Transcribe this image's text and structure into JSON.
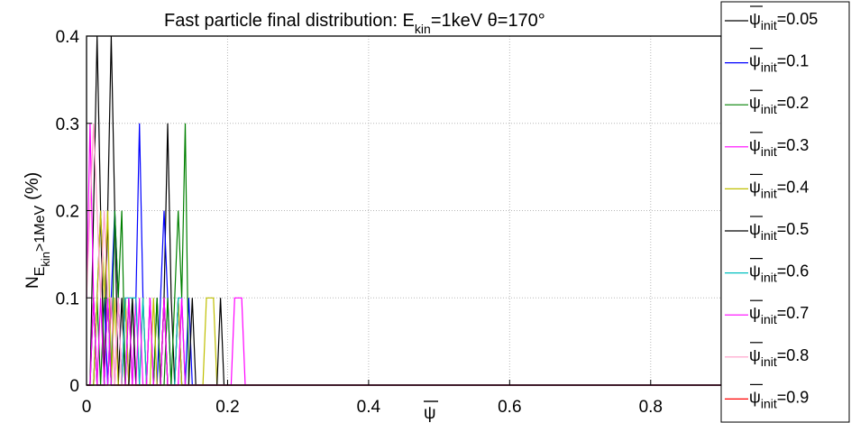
{
  "chart_data": {
    "type": "line",
    "title": {
      "main": "Fast particle final distribution: E",
      "sub": "kin",
      "rest": "=1keV θ=170°"
    },
    "xlabel": "ψ",
    "ylabel": {
      "main": "N",
      "sub": "E",
      "subsub": "kin",
      "rest": ">1MeV",
      "unit": "(%)"
    },
    "xlim": [
      0,
      0.9
    ],
    "ylim": [
      0,
      0.4
    ],
    "xticks": [
      "0",
      "0.2",
      "0.4",
      "0.6",
      "0.8"
    ],
    "yticks": [
      "0",
      "0.1",
      "0.2",
      "0.3",
      "0.4"
    ],
    "grid": true,
    "legend_position": "right-outside",
    "legend_sub": "init",
    "series": [
      {
        "name": "0.05",
        "color": "#000000",
        "x": [
          0,
          0.005,
          0.01,
          0.015,
          0.02,
          0.025,
          0.03,
          0.035,
          0.04,
          0.045,
          0.05,
          0.055,
          0.06,
          0.065,
          0.07,
          0.075,
          0.08,
          0.085,
          0.09,
          0.095,
          0.1,
          0.105,
          0.11,
          0.115,
          0.12,
          0.125,
          0.13,
          0.135,
          0.14,
          0.145,
          0.15,
          0.155,
          0.16,
          0.9
        ],
        "y": [
          0,
          0,
          0.2,
          0.4,
          0.2,
          0,
          0.2,
          0.4,
          0.2,
          0,
          0.1,
          0,
          0.1,
          0,
          0,
          0,
          0,
          0,
          0,
          0,
          0.1,
          0,
          0.1,
          0.3,
          0.1,
          0,
          0.1,
          0,
          0,
          0,
          0,
          0,
          0,
          0
        ]
      },
      {
        "name": "0.1",
        "color": "#0000ff",
        "x": [
          0,
          0.01,
          0.015,
          0.02,
          0.025,
          0.03,
          0.035,
          0.04,
          0.045,
          0.05,
          0.055,
          0.06,
          0.065,
          0.07,
          0.075,
          0.08,
          0.085,
          0.09,
          0.095,
          0.1,
          0.105,
          0.11,
          0.115,
          0.12,
          0.125,
          0.13,
          0.135,
          0.14,
          0.145,
          0.15,
          0.9
        ],
        "y": [
          0,
          0,
          0.1,
          0.2,
          0.1,
          0,
          0.1,
          0.2,
          0.1,
          0,
          0.1,
          0,
          0,
          0.1,
          0.3,
          0.1,
          0,
          0,
          0,
          0,
          0.1,
          0.2,
          0.1,
          0,
          0,
          0.1,
          0,
          0,
          0.1,
          0,
          0
        ]
      },
      {
        "name": "0.2",
        "color": "#008000",
        "x": [
          0,
          0.01,
          0.015,
          0.02,
          0.025,
          0.03,
          0.035,
          0.04,
          0.045,
          0.05,
          0.055,
          0.06,
          0.065,
          0.07,
          0.075,
          0.08,
          0.085,
          0.09,
          0.095,
          0.1,
          0.105,
          0.11,
          0.115,
          0.12,
          0.125,
          0.13,
          0.135,
          0.14,
          0.145,
          0.15,
          0.9
        ],
        "y": [
          0,
          0,
          0.1,
          0,
          0.1,
          0.1,
          0,
          0.2,
          0.1,
          0.2,
          0,
          0,
          0.1,
          0,
          0,
          0,
          0,
          0.1,
          0,
          0.1,
          0,
          0,
          0.1,
          0,
          0.1,
          0.2,
          0.1,
          0.3,
          0,
          0,
          0
        ]
      },
      {
        "name": "0.3",
        "color": "#ff00ff",
        "x": [
          0,
          0.005,
          0.01,
          0.015,
          0.02,
          0.025,
          0.03,
          0.035,
          0.04,
          0.045,
          0.05,
          0.055,
          0.06,
          0.065,
          0.07,
          0.075,
          0.08,
          0.085,
          0.09,
          0.095,
          0.1,
          0.105,
          0.11,
          0.115,
          0.12,
          0.125,
          0.13,
          0.135,
          0.14,
          0.145,
          0.15,
          0.155,
          0.16,
          0.165,
          0.17,
          0.175,
          0.18,
          0.185,
          0.19,
          0.195,
          0.2,
          0.205,
          0.21,
          0.215,
          0.22,
          0.225,
          0.9
        ],
        "y": [
          0.1,
          0.3,
          0.1,
          0,
          0.1,
          0,
          0,
          0.1,
          0,
          0,
          0,
          0.1,
          0,
          0,
          0.1,
          0,
          0,
          0,
          0.1,
          0,
          0,
          0,
          0.1,
          0,
          0,
          0,
          0,
          0.1,
          0,
          0,
          0,
          0,
          0,
          0,
          0,
          0,
          0,
          0,
          0,
          0,
          0,
          0,
          0.1,
          0.1,
          0.1,
          0,
          0
        ]
      },
      {
        "name": "0.4",
        "color": "#bfbf00",
        "x": [
          0,
          0.01,
          0.015,
          0.02,
          0.025,
          0.03,
          0.035,
          0.04,
          0.045,
          0.05,
          0.055,
          0.06,
          0.065,
          0.07,
          0.075,
          0.08,
          0.085,
          0.09,
          0.095,
          0.1,
          0.105,
          0.11,
          0.115,
          0.12,
          0.125,
          0.13,
          0.135,
          0.14,
          0.145,
          0.15,
          0.155,
          0.16,
          0.165,
          0.17,
          0.175,
          0.18,
          0.185,
          0.19,
          0.195,
          0.9
        ],
        "y": [
          0,
          0,
          0.1,
          0.2,
          0.1,
          0.2,
          0,
          0.1,
          0,
          0,
          0.1,
          0,
          0,
          0,
          0,
          0.1,
          0,
          0,
          0.1,
          0,
          0,
          0.1,
          0,
          0,
          0,
          0.1,
          0,
          0,
          0,
          0,
          0,
          0,
          0,
          0.1,
          0.1,
          0.1,
          0,
          0,
          0,
          0
        ]
      },
      {
        "name": "0.5",
        "color": "#000000",
        "x": [
          0,
          0.005,
          0.01,
          0.015,
          0.02,
          0.025,
          0.03,
          0.035,
          0.04,
          0.045,
          0.05,
          0.055,
          0.06,
          0.065,
          0.07,
          0.075,
          0.08,
          0.085,
          0.09,
          0.095,
          0.1,
          0.105,
          0.11,
          0.115,
          0.12,
          0.125,
          0.13,
          0.135,
          0.14,
          0.145,
          0.15,
          0.155,
          0.16,
          0.165,
          0.17,
          0.175,
          0.18,
          0.185,
          0.19,
          0.195,
          0.2,
          0.9
        ],
        "y": [
          0,
          0,
          0.1,
          0,
          0,
          0,
          0.1,
          0,
          0,
          0,
          0,
          0,
          0,
          0.1,
          0,
          0,
          0,
          0,
          0,
          0,
          0,
          0,
          0.1,
          0,
          0,
          0,
          0,
          0,
          0,
          0,
          0.1,
          0,
          0,
          0,
          0,
          0,
          0,
          0,
          0.1,
          0,
          0,
          0
        ]
      },
      {
        "name": "0.6",
        "color": "#00bfbf",
        "x": [
          0,
          0.025,
          0.03,
          0.035,
          0.04,
          0.045,
          0.05,
          0.055,
          0.06,
          0.065,
          0.07,
          0.075,
          0.08,
          0.085,
          0.09,
          0.095,
          0.1,
          0.105,
          0.11,
          0.115,
          0.12,
          0.125,
          0.13,
          0.135,
          0.14,
          0.145,
          0.15,
          0.9
        ],
        "y": [
          0,
          0,
          0.1,
          0,
          0,
          0.1,
          0,
          0.1,
          0.1,
          0.1,
          0.1,
          0,
          0.1,
          0,
          0,
          0,
          0,
          0,
          0,
          0,
          0,
          0,
          0.1,
          0.1,
          0,
          0,
          0,
          0
        ]
      },
      {
        "name": "0.7",
        "color": "#ff00ff",
        "x": [
          0,
          0.005,
          0.01,
          0.015,
          0.02,
          0.025,
          0.03,
          0.035,
          0.04,
          0.045,
          0.05,
          0.055,
          0.06,
          0.065,
          0.07,
          0.075,
          0.08,
          0.085,
          0.09,
          0.095,
          0.1,
          0.105,
          0.11,
          0.115,
          0.12,
          0.125,
          0.13,
          0.135,
          0.14,
          0.145,
          0.15,
          0.9
        ],
        "y": [
          0,
          0,
          0.1,
          0,
          0,
          0,
          0.1,
          0,
          0,
          0.1,
          0,
          0,
          0.1,
          0,
          0,
          0.1,
          0,
          0,
          0.1,
          0,
          0,
          0,
          0.1,
          0,
          0,
          0,
          0,
          0.1,
          0,
          0,
          0,
          0
        ]
      },
      {
        "name": "0.8",
        "color": "#ff9ec8",
        "x": [
          0,
          0.005,
          0.01,
          0.015,
          0.02,
          0.025,
          0.03,
          0.035,
          0.04,
          0.045,
          0.05,
          0.055,
          0.06,
          0.9
        ],
        "y": [
          0.1,
          0.2,
          0.3,
          0.2,
          0.1,
          0.2,
          0.1,
          0.1,
          0,
          0.1,
          0,
          0,
          0,
          0
        ]
      },
      {
        "name": "0.9",
        "color": "#ff0000",
        "x": [
          0,
          0.9
        ],
        "y": [
          0,
          0
        ]
      }
    ]
  }
}
